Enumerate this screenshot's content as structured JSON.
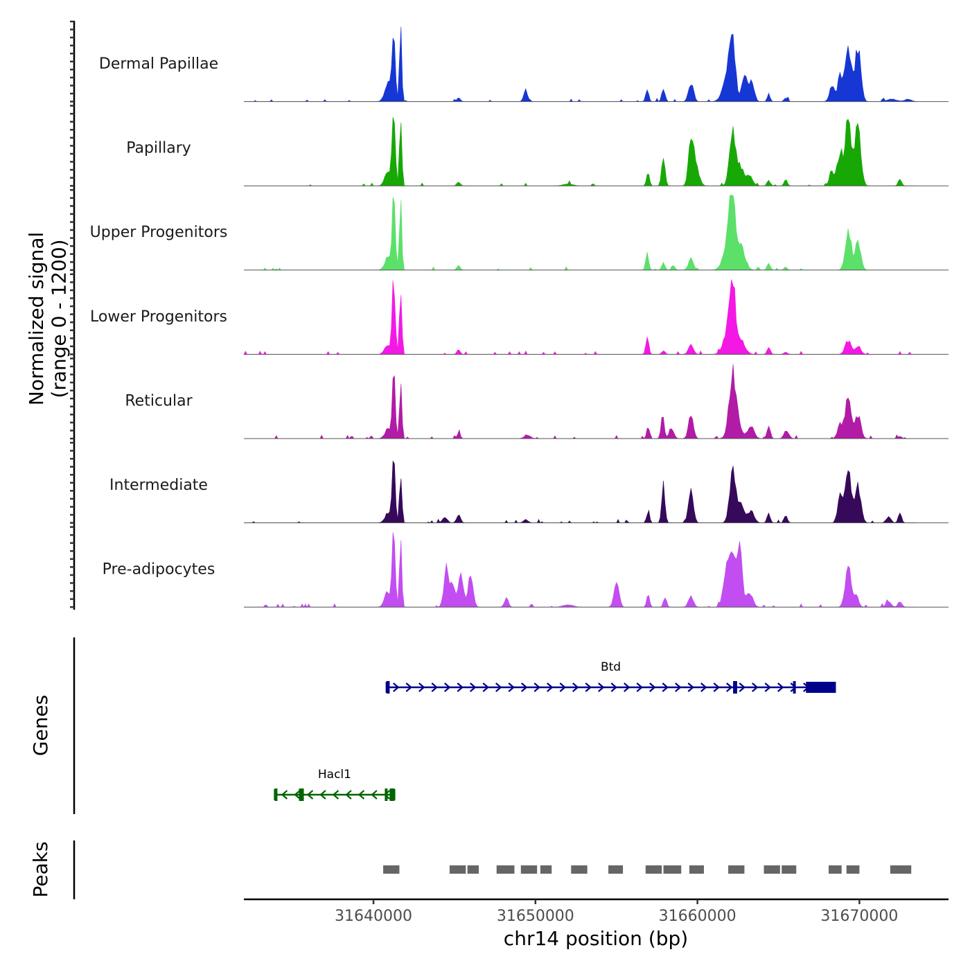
{
  "chart_data": {
    "type": "area",
    "title": "",
    "ylabel": "Normalized signal\n(range 0 - 1200)",
    "ylabel_lines": [
      "Normalized signal",
      "(range 0 - 1200)"
    ],
    "y_range": [
      0,
      1200
    ],
    "xlabel": "chr14 position (bp)",
    "xlim": [
      31632000,
      31675500
    ],
    "x_ticks": [
      31640000,
      31650000,
      31660000,
      31670000
    ],
    "x_tick_labels": [
      "31640000",
      "31650000",
      "31660000",
      "31670000"
    ],
    "bin_width_bp": 100,
    "data_start_bp": 31632000,
    "data_end_bp": 31673500,
    "tracks": [
      {
        "name": "Dermal Papillae",
        "color": "#1737d4",
        "peaks": [
          [
            31641250,
            1200,
            90
          ],
          [
            31641680,
            1100,
            70
          ],
          [
            31640900,
            300,
            200
          ],
          [
            31645250,
            70,
            100
          ],
          [
            31649400,
            180,
            120
          ],
          [
            31656900,
            200,
            90
          ],
          [
            31657900,
            220,
            100
          ],
          [
            31659600,
            300,
            150
          ],
          [
            31662150,
            780,
            180
          ],
          [
            31661900,
            450,
            300
          ],
          [
            31662900,
            480,
            150
          ],
          [
            31663350,
            360,
            150
          ],
          [
            31664400,
            120,
            90
          ],
          [
            31665450,
            60,
            100
          ],
          [
            31668300,
            250,
            150
          ],
          [
            31668800,
            400,
            150
          ],
          [
            31669300,
            880,
            180
          ],
          [
            31669900,
            880,
            180
          ],
          [
            31672000,
            40,
            300
          ],
          [
            31673000,
            40,
            200
          ]
        ]
      },
      {
        "name": "Papillary",
        "color": "#17a806",
        "peaks": [
          [
            31641250,
            1200,
            90
          ],
          [
            31641680,
            1100,
            70
          ],
          [
            31640900,
            200,
            200
          ],
          [
            31645250,
            70,
            100
          ],
          [
            31652000,
            30,
            300
          ],
          [
            31656950,
            200,
            90
          ],
          [
            31657900,
            480,
            100
          ],
          [
            31659600,
            740,
            150
          ],
          [
            31659900,
            320,
            200
          ],
          [
            31662150,
            820,
            180
          ],
          [
            31662600,
            300,
            250
          ],
          [
            31663200,
            150,
            200
          ],
          [
            31664400,
            90,
            100
          ],
          [
            31665450,
            100,
            100
          ],
          [
            31668300,
            250,
            150
          ],
          [
            31668800,
            540,
            150
          ],
          [
            31669300,
            1180,
            180
          ],
          [
            31669900,
            1020,
            180
          ],
          [
            31672500,
            110,
            100
          ]
        ]
      },
      {
        "name": "Upper Progenitors",
        "color": "#5ce06a",
        "peaks": [
          [
            31641250,
            1200,
            90
          ],
          [
            31641680,
            1080,
            70
          ],
          [
            31640900,
            200,
            200
          ],
          [
            31645250,
            80,
            100
          ],
          [
            31656900,
            290,
            90
          ],
          [
            31657900,
            120,
            100
          ],
          [
            31658500,
            80,
            100
          ],
          [
            31659600,
            200,
            150
          ],
          [
            31662150,
            1150,
            180
          ],
          [
            31661900,
            400,
            300
          ],
          [
            31662700,
            350,
            250
          ],
          [
            31664400,
            110,
            100
          ],
          [
            31665450,
            50,
            100
          ],
          [
            31669300,
            590,
            180
          ],
          [
            31669900,
            450,
            180
          ]
        ]
      },
      {
        "name": "Lower Progenitors",
        "color": "#f418e5",
        "peaks": [
          [
            31641250,
            1200,
            90
          ],
          [
            31641680,
            1080,
            70
          ],
          [
            31640900,
            150,
            200
          ],
          [
            31645250,
            70,
            100
          ],
          [
            31656900,
            280,
            90
          ],
          [
            31657900,
            60,
            100
          ],
          [
            31659600,
            170,
            150
          ],
          [
            31662150,
            970,
            180
          ],
          [
            31661950,
            400,
            300
          ],
          [
            31662700,
            200,
            250
          ],
          [
            31664400,
            110,
            100
          ],
          [
            31665450,
            40,
            100
          ],
          [
            31669300,
            220,
            180
          ],
          [
            31669900,
            120,
            180
          ]
        ]
      },
      {
        "name": "Reticular",
        "color": "#b11ba6",
        "peaks": [
          [
            31641250,
            1100,
            90
          ],
          [
            31641680,
            850,
            70
          ],
          [
            31640900,
            150,
            200
          ],
          [
            31645250,
            90,
            100
          ],
          [
            31649500,
            50,
            200
          ],
          [
            31656950,
            180,
            90
          ],
          [
            31657850,
            350,
            100
          ],
          [
            31658400,
            150,
            150
          ],
          [
            31659600,
            370,
            150
          ],
          [
            31662150,
            730,
            180
          ],
          [
            31662300,
            400,
            300
          ],
          [
            31663300,
            200,
            200
          ],
          [
            31664400,
            220,
            100
          ],
          [
            31665500,
            130,
            150
          ],
          [
            31668800,
            230,
            150
          ],
          [
            31669300,
            690,
            180
          ],
          [
            31669900,
            370,
            180
          ],
          [
            31672500,
            40,
            100
          ]
        ]
      },
      {
        "name": "Intermediate",
        "color": "#36095a",
        "peaks": [
          [
            31641250,
            1050,
            90
          ],
          [
            31641680,
            860,
            70
          ],
          [
            31640900,
            150,
            200
          ],
          [
            31644400,
            90,
            150
          ],
          [
            31645250,
            130,
            120
          ],
          [
            31649400,
            50,
            150
          ],
          [
            31656950,
            170,
            90
          ],
          [
            31657900,
            580,
            100
          ],
          [
            31659600,
            540,
            150
          ],
          [
            31662150,
            740,
            180
          ],
          [
            31662600,
            300,
            250
          ],
          [
            31663300,
            180,
            200
          ],
          [
            31664400,
            150,
            100
          ],
          [
            31665450,
            130,
            100
          ],
          [
            31668800,
            420,
            150
          ],
          [
            31669300,
            900,
            180
          ],
          [
            31669900,
            580,
            180
          ],
          [
            31671800,
            90,
            150
          ],
          [
            31672500,
            150,
            100
          ]
        ]
      },
      {
        "name": "Pre-adipocytes",
        "color": "#c24df0",
        "peaks": [
          [
            31641250,
            1150,
            90
          ],
          [
            31641680,
            1100,
            70
          ],
          [
            31640900,
            250,
            200
          ],
          [
            31644500,
            650,
            150
          ],
          [
            31644900,
            400,
            150
          ],
          [
            31645400,
            500,
            150
          ],
          [
            31646000,
            520,
            150
          ],
          [
            31648200,
            150,
            120
          ],
          [
            31652000,
            40,
            300
          ],
          [
            31655000,
            460,
            150
          ],
          [
            31656950,
            200,
            90
          ],
          [
            31658000,
            150,
            100
          ],
          [
            31659600,
            180,
            150
          ],
          [
            31661800,
            600,
            200
          ],
          [
            31662200,
            800,
            200
          ],
          [
            31662600,
            960,
            150
          ],
          [
            31663200,
            250,
            200
          ],
          [
            31669300,
            630,
            180
          ],
          [
            31669800,
            180,
            150
          ],
          [
            31671800,
            100,
            150
          ],
          [
            31672500,
            90,
            120
          ]
        ]
      }
    ],
    "genes": [
      {
        "name": "Btd",
        "color": "#00008b",
        "strand": "+",
        "start": 31640800,
        "end": 31668500,
        "exons": [
          [
            31640800,
            31641000
          ],
          [
            31662200,
            31662450
          ],
          [
            31665900,
            31666050
          ],
          [
            31666700,
            31668500
          ]
        ],
        "row": 1
      },
      {
        "name": "Hacl1",
        "color": "#006400",
        "strand": "-",
        "start": 31633900,
        "end": 31641300,
        "exons": [
          [
            31633900,
            31634000
          ],
          [
            31635400,
            31635700
          ],
          [
            31640700,
            31640800
          ],
          [
            31641000,
            31641300
          ]
        ],
        "row": 2
      }
    ],
    "peaks_track": {
      "label": "Peaks",
      "color": "#666666",
      "regions": [
        [
          31640600,
          31641600
        ],
        [
          31644700,
          31645700
        ],
        [
          31645800,
          31646500
        ],
        [
          31647600,
          31648700
        ],
        [
          31649100,
          31650100
        ],
        [
          31650300,
          31651000
        ],
        [
          31652200,
          31653200
        ],
        [
          31654500,
          31655400
        ],
        [
          31656800,
          31657800
        ],
        [
          31657900,
          31659000
        ],
        [
          31659500,
          31660400
        ],
        [
          31661900,
          31662900
        ],
        [
          31664100,
          31665100
        ],
        [
          31665200,
          31666100
        ],
        [
          31668100,
          31668900
        ],
        [
          31669200,
          31670000
        ],
        [
          31671900,
          31673200
        ]
      ]
    },
    "genes_track_label": "Genes"
  }
}
